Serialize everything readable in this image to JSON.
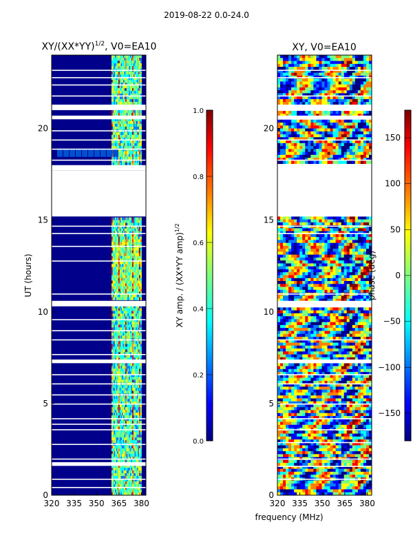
{
  "suptitle": "2019-08-22 0.0-24.0",
  "xlabel_shared": "frequency (MHz)",
  "colors": {
    "jet": [
      "#00007f",
      "#0000ff",
      "#007fff",
      "#00ffff",
      "#7fff7f",
      "#ffff00",
      "#ff7f00",
      "#ff0000",
      "#7f0000"
    ],
    "dark_blue": "#00008b",
    "gap": "#ffffff"
  },
  "chart_data": [
    {
      "type": "heatmap",
      "title": "XY/(XX*YY)^1/2, V0=EA10",
      "title_main": "XY/(XX*YY)",
      "title_exp": "1/2",
      "title_tail": ", V0=EA10",
      "xlabel": "",
      "ylabel": "UT (hours)",
      "xlim": [
        320,
        383
      ],
      "ylim": [
        0,
        24
      ],
      "xticks": [
        320,
        335,
        350,
        365,
        380
      ],
      "xtick_labels": [
        "320",
        "335",
        "350",
        "365",
        "380"
      ],
      "yticks": [
        0,
        5,
        10,
        15,
        20
      ],
      "ytick_labels": [
        "0",
        "5",
        "10",
        "15",
        "20"
      ],
      "colorbar": {
        "label": "XY amp. / (XX*YY amp)^1/2",
        "label_main": "XY amp. / (XX*YY amp)",
        "label_exp": "1/2",
        "range": [
          0.0,
          1.0
        ],
        "ticks": [
          0.0,
          0.2,
          0.4,
          0.6,
          0.8,
          1.0
        ],
        "tick_labels": [
          "0.0",
          "0.2",
          "0.4",
          "0.6",
          "0.8",
          "1.0"
        ]
      },
      "signal_band_mhz": [
        360,
        380
      ],
      "gaps_ut": [
        [
          17.7,
          18.0
        ],
        [
          15.2,
          17.7
        ],
        [
          10.3,
          10.6
        ],
        [
          7.2,
          7.4
        ],
        [
          1.6,
          1.8
        ],
        [
          20.5,
          20.7
        ],
        [
          21.0,
          21.3
        ]
      ]
    },
    {
      "type": "heatmap",
      "title": "XY, V0=EA10",
      "xlabel": "frequency (MHz)",
      "ylabel": "",
      "xlim": [
        320,
        383
      ],
      "ylim": [
        0,
        24
      ],
      "xticks": [
        320,
        335,
        350,
        365,
        380
      ],
      "xtick_labels": [
        "320",
        "335",
        "350",
        "365",
        "380"
      ],
      "yticks": [
        0,
        5,
        10,
        15,
        20
      ],
      "ytick_labels": [
        "0",
        "5",
        "10",
        "15",
        "20"
      ],
      "colorbar": {
        "label": "phase (deg)",
        "range": [
          -180,
          180
        ],
        "ticks": [
          -150,
          -100,
          -50,
          0,
          50,
          100,
          150
        ],
        "tick_labels": [
          "−150",
          "−100",
          "−50",
          "0",
          "50",
          "100",
          "150"
        ]
      },
      "gaps_ut": [
        [
          15.2,
          17.7
        ],
        [
          17.7,
          18.0
        ],
        [
          10.3,
          10.6
        ],
        [
          7.2,
          7.4
        ],
        [
          20.5,
          20.7
        ],
        [
          21.0,
          21.3
        ]
      ]
    }
  ]
}
